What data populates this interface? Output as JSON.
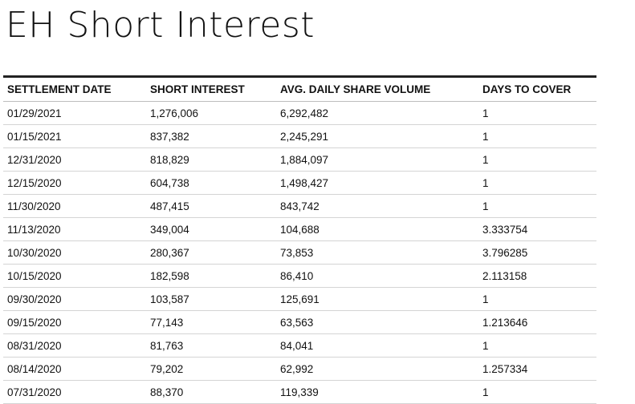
{
  "page": {
    "title": "EH Short Interest"
  },
  "table": {
    "headers": {
      "settlement_date": "SETTLEMENT DATE",
      "short_interest": "SHORT INTEREST",
      "avg_daily_volume": "AVG. DAILY SHARE VOLUME",
      "days_to_cover": "DAYS TO COVER"
    },
    "rows": [
      {
        "date": "01/29/2021",
        "short_interest": "1,276,006",
        "volume": "6,292,482",
        "days": "1"
      },
      {
        "date": "01/15/2021",
        "short_interest": "837,382",
        "volume": "2,245,291",
        "days": "1"
      },
      {
        "date": "12/31/2020",
        "short_interest": "818,829",
        "volume": "1,884,097",
        "days": "1"
      },
      {
        "date": "12/15/2020",
        "short_interest": "604,738",
        "volume": "1,498,427",
        "days": "1"
      },
      {
        "date": "11/30/2020",
        "short_interest": "487,415",
        "volume": "843,742",
        "days": "1"
      },
      {
        "date": "11/13/2020",
        "short_interest": "349,004",
        "volume": "104,688",
        "days": "3.333754"
      },
      {
        "date": "10/30/2020",
        "short_interest": "280,367",
        "volume": "73,853",
        "days": "3.796285"
      },
      {
        "date": "10/15/2020",
        "short_interest": "182,598",
        "volume": "86,410",
        "days": "2.113158"
      },
      {
        "date": "09/30/2020",
        "short_interest": "103,587",
        "volume": "125,691",
        "days": "1"
      },
      {
        "date": "09/15/2020",
        "short_interest": "77,143",
        "volume": "63,563",
        "days": "1.213646"
      },
      {
        "date": "08/31/2020",
        "short_interest": "81,763",
        "volume": "84,041",
        "days": "1"
      },
      {
        "date": "08/14/2020",
        "short_interest": "79,202",
        "volume": "62,992",
        "days": "1.257334"
      },
      {
        "date": "07/31/2020",
        "short_interest": "88,370",
        "volume": "119,339",
        "days": "1"
      }
    ]
  }
}
